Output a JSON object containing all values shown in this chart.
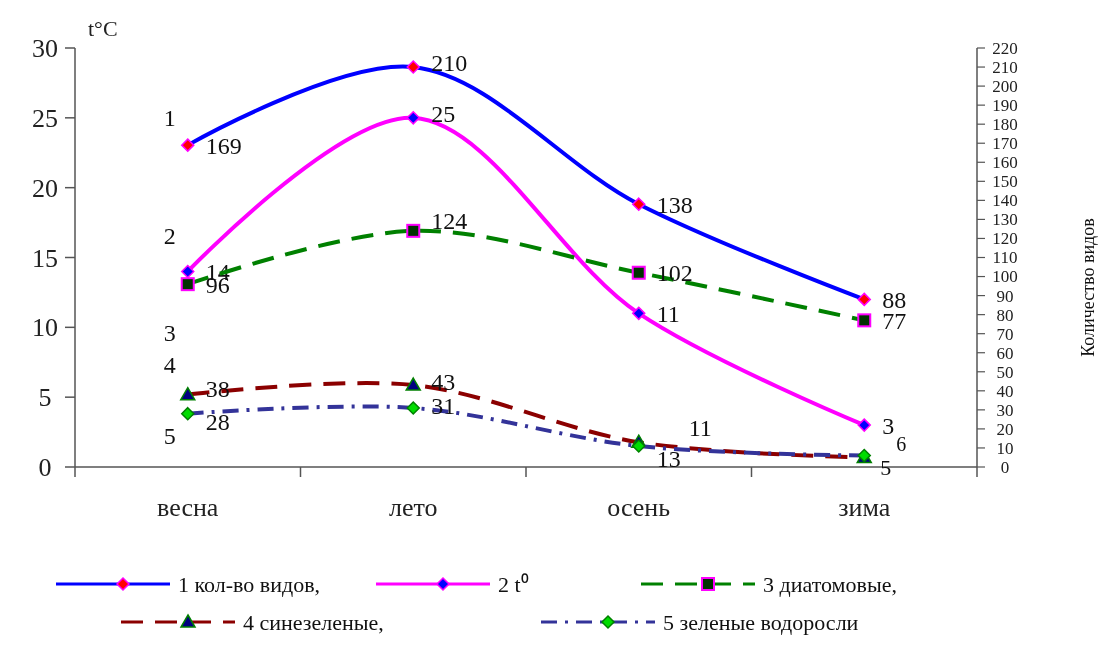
{
  "chart_data": {
    "type": "line",
    "ylabel": "t°C",
    "y2label": "Количество видов",
    "categories": [
      "весна",
      "лето",
      "осень",
      "зима"
    ],
    "ylim": [
      0,
      30
    ],
    "yticks": [
      0,
      5,
      10,
      15,
      20,
      25,
      30
    ],
    "y2lim": [
      0,
      220
    ],
    "y2ticks": [
      0,
      10,
      20,
      30,
      40,
      50,
      60,
      70,
      80,
      90,
      100,
      110,
      120,
      130,
      140,
      150,
      160,
      170,
      180,
      190,
      200,
      210,
      220
    ],
    "series": [
      {
        "name": "1 кол-во видов,",
        "color": "#0000ff",
        "axis": "y2",
        "marker": "diamond",
        "line_style": "solid",
        "values": [
          169,
          210,
          138,
          88
        ]
      },
      {
        "name": "2 t⁰",
        "color": "#ff00ff",
        "axis": "y",
        "marker": "diamond",
        "line_style": "solid",
        "values": [
          14,
          25,
          11,
          3
        ]
      },
      {
        "name": "3 диатомовые,",
        "color": "#008000",
        "axis": "y2",
        "marker": "square",
        "line_style": "dashed",
        "values": [
          96,
          124,
          102,
          77
        ]
      },
      {
        "name": "4 синезеленые,",
        "color": "#8b0000",
        "axis": "y2",
        "marker": "triangle",
        "line_style": "dashed",
        "values": [
          38,
          43,
          13,
          5
        ]
      },
      {
        "name": "5 зеленые водоросли",
        "color": "#333399",
        "axis": "y2",
        "marker": "diamond",
        "line_style": "dotted",
        "values": [
          28,
          31,
          11,
          6
        ]
      }
    ],
    "annotations": [
      "1",
      "2",
      "3",
      "4",
      "5"
    ],
    "data_labels": true,
    "legend": "bottom",
    "grid": false
  }
}
